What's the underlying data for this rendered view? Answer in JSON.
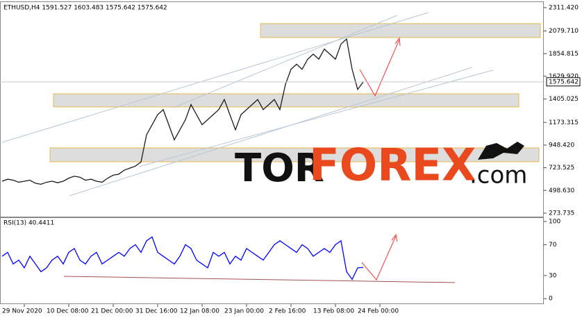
{
  "chart_data": [
    {
      "type": "line",
      "title": "ETHUSD,H4  1591.527 1603.483 1575.642 1575.642",
      "color": "#1a1a1a",
      "categories": [
        null,
        null,
        null,
        null,
        "29 Nov 2020",
        null,
        null,
        null,
        null,
        null,
        null,
        null,
        "10 Dec 08:00",
        null,
        null,
        null,
        null,
        null,
        null,
        null,
        "21 Dec 00:00",
        null,
        null,
        null,
        null,
        null,
        null,
        null,
        "31 Dec 16:00",
        null,
        null,
        null,
        null,
        null,
        null,
        null,
        "12 Jan 08:00",
        null,
        null,
        null,
        null,
        null,
        null,
        null,
        "23 Jan 00:00",
        null,
        null,
        null,
        null,
        null,
        null,
        null,
        "2 Feb 16:00",
        null,
        null,
        null,
        null,
        null,
        null,
        null,
        "13 Feb 08:00",
        null,
        null,
        null,
        null,
        null,
        null,
        null,
        "24 Feb 00:00"
      ],
      "values": [
        590,
        610,
        600,
        580,
        590,
        600,
        570,
        560,
        580,
        590,
        575,
        590,
        620,
        640,
        630,
        600,
        610,
        590,
        580,
        620,
        650,
        660,
        700,
        720,
        740,
        780,
        1050,
        1150,
        1250,
        1300,
        1150,
        1000,
        1100,
        1200,
        1350,
        1250,
        1150,
        1200,
        1250,
        1300,
        1400,
        1250,
        1100,
        1250,
        1300,
        1350,
        1400,
        1300,
        1350,
        1400,
        1300,
        1550,
        1700,
        1750,
        1700,
        1800,
        1850,
        1800,
        1900,
        1850,
        1800,
        1950,
        2000,
        1700,
        1500,
        1575.642,
        null,
        null,
        null
      ],
      "ylim": [
        232,
        2373
      ],
      "yticks": [
        {
          "value": 2311.42,
          "label": "2311.420"
        },
        {
          "value": 2079.71,
          "label": "2079.710"
        },
        {
          "value": 1854.815,
          "label": "1854.815"
        },
        {
          "value": 1629.92,
          "label": "1629.920"
        },
        {
          "value": 1405.025,
          "label": "1405.025"
        },
        {
          "value": 1173.315,
          "label": "1173.315"
        },
        {
          "value": 948.42,
          "label": "948.420"
        },
        {
          "value": 723.525,
          "label": "723.525"
        },
        {
          "value": 498.63,
          "label": "498.630"
        },
        {
          "value": 273.735,
          "label": "273.735"
        }
      ],
      "last_price": {
        "value": 1575.642,
        "label": "1575.642"
      },
      "watermark": {
        "part1": "TOR",
        "part2": "FOREX",
        "part3": ".com"
      }
    },
    {
      "type": "line",
      "title": "RSI(13) 40.4411",
      "color": "#0000ff",
      "values": [
        55,
        60,
        45,
        50,
        40,
        55,
        45,
        35,
        40,
        50,
        55,
        45,
        60,
        65,
        50,
        45,
        55,
        60,
        45,
        50,
        55,
        60,
        55,
        65,
        70,
        60,
        75,
        80,
        60,
        55,
        50,
        45,
        55,
        70,
        65,
        50,
        45,
        40,
        60,
        55,
        60,
        45,
        55,
        50,
        65,
        60,
        55,
        50,
        60,
        70,
        75,
        70,
        65,
        60,
        70,
        65,
        55,
        60,
        65,
        60,
        70,
        75,
        35,
        25,
        40,
        40.4411,
        null,
        null,
        null
      ],
      "ylim": [
        -7,
        104.5
      ],
      "yticks": [
        100,
        70,
        30,
        0
      ]
    }
  ]
}
